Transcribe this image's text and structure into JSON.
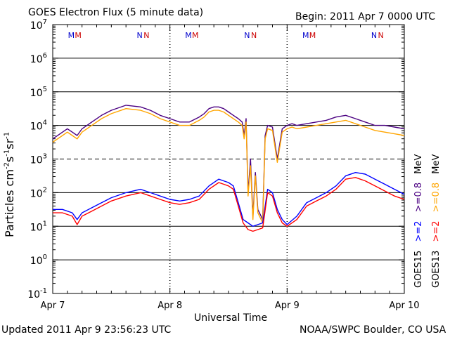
{
  "header": {
    "title": "GOES Electron Flux (5 minute data)",
    "begin": "Begin: 2011 Apr 7 0000 UTC"
  },
  "footer": {
    "updated": "Updated 2011 Apr  9 23:56:23 UTC",
    "credit": "NOAA/SWPC Boulder, CO USA"
  },
  "axes": {
    "xlabel": "Universal Time",
    "ylabel_main": "Particles cm",
    "ylabel_exp1": "-2",
    "ylabel_mid1": "s",
    "ylabel_exp2": "-1",
    "ylabel_mid2": "sr",
    "ylabel_exp3": "-1",
    "xticks": [
      "Apr 7",
      "Apr 8",
      "Apr 9",
      "Apr 10"
    ],
    "yticks": [
      {
        "base": "10",
        "exp": "7"
      },
      {
        "base": "10",
        "exp": "6"
      },
      {
        "base": "10",
        "exp": "5"
      },
      {
        "base": "10",
        "exp": "4"
      },
      {
        "base": "10",
        "exp": "3"
      },
      {
        "base": "10",
        "exp": "2"
      },
      {
        "base": "10",
        "exp": "1"
      },
      {
        "base": "10",
        "exp": "0"
      },
      {
        "base": "10",
        "exp": "-1"
      }
    ]
  },
  "legend": {
    "goes15": "GOES15",
    "goes13": "GOES13",
    "g15_low": ">=2",
    "g15_high": ">=0.8",
    "g13_low": ">=2",
    "g13_high": ">=0.8",
    "unit": "MeV"
  },
  "markers": {
    "labels": [
      "M",
      "M",
      "N",
      "N",
      "M",
      "M",
      "N",
      "N",
      "M",
      "M",
      "N",
      "N"
    ],
    "colors": [
      "#0000cc",
      "#cc0000",
      "#0000cc",
      "#cc0000",
      "#0000cc",
      "#cc0000",
      "#0000cc",
      "#cc0000",
      "#0000cc",
      "#cc0000",
      "#0000cc",
      "#cc0000"
    ]
  },
  "colors": {
    "goes15_high": "#4b0082",
    "goes13_high": "#ffa500",
    "goes15_low": "#0000ff",
    "goes13_low": "#ff0000"
  },
  "chart_data": {
    "type": "line",
    "title": "GOES Electron Flux (5 minute data)",
    "xlabel": "Universal Time",
    "ylabel": "Particles cm^-2 s^-1 sr^-1",
    "x_unit": "hours since 2011 Apr 7 0000 UTC",
    "xlim": [
      0,
      72
    ],
    "ylim_log10": [
      -1,
      7
    ],
    "y_scale": "log",
    "threshold_line_log10": 3,
    "series": [
      {
        "name": "GOES15 >=0.8 MeV",
        "color": "#4b0082",
        "x": [
          0,
          2,
          3,
          4,
          5,
          6,
          8,
          10,
          12,
          15,
          18,
          20,
          22,
          24,
          26,
          28,
          30,
          31,
          32,
          33,
          34,
          35,
          36,
          37,
          38,
          38.8,
          39.2,
          39.6,
          40,
          40.5,
          41,
          41.5,
          42,
          43,
          43.5,
          44,
          45,
          46,
          47,
          48,
          49,
          50,
          52,
          54,
          56,
          58,
          60,
          62,
          64,
          66,
          68,
          70,
          72
        ],
        "y": [
          3.6,
          3.8,
          3.9,
          3.8,
          3.7,
          3.9,
          4.1,
          4.3,
          4.45,
          4.6,
          4.55,
          4.45,
          4.3,
          4.2,
          4.1,
          4.1,
          4.25,
          4.35,
          4.5,
          4.55,
          4.55,
          4.5,
          4.4,
          4.3,
          4.2,
          4.1,
          3.7,
          4.2,
          2.0,
          3.0,
          1.3,
          2.6,
          1.5,
          1.2,
          3.7,
          4.0,
          3.95,
          3.0,
          3.9,
          4.0,
          4.05,
          4.0,
          4.05,
          4.1,
          4.15,
          4.25,
          4.3,
          4.2,
          4.1,
          4.0,
          4.0,
          3.95,
          3.9
        ]
      },
      {
        "name": "GOES13 >=0.8 MeV",
        "color": "#ffa500",
        "x": [
          0,
          2,
          3,
          4,
          5,
          6,
          8,
          10,
          12,
          15,
          18,
          20,
          22,
          24,
          26,
          28,
          30,
          31,
          32,
          33,
          34,
          35,
          36,
          37,
          38,
          38.8,
          39.2,
          39.6,
          40,
          40.5,
          41,
          41.5,
          42,
          43,
          43.5,
          44,
          45,
          46,
          47,
          48,
          49,
          50,
          52,
          54,
          56,
          58,
          60,
          62,
          64,
          66,
          68,
          70,
          72
        ],
        "y": [
          3.5,
          3.7,
          3.8,
          3.7,
          3.6,
          3.8,
          4.0,
          4.2,
          4.35,
          4.5,
          4.45,
          4.35,
          4.2,
          4.1,
          4.0,
          4.0,
          4.15,
          4.25,
          4.4,
          4.45,
          4.45,
          4.4,
          4.3,
          4.2,
          4.1,
          4.0,
          3.6,
          4.1,
          1.9,
          2.8,
          1.2,
          2.5,
          1.4,
          1.1,
          3.6,
          3.9,
          3.85,
          2.9,
          3.8,
          3.9,
          3.95,
          3.9,
          3.95,
          4.0,
          4.05,
          4.1,
          4.15,
          4.05,
          3.95,
          3.85,
          3.8,
          3.75,
          3.7
        ]
      },
      {
        "name": "GOES15 >=2 MeV",
        "color": "#0000ff",
        "x": [
          0,
          2,
          4,
          5,
          6,
          8,
          10,
          12,
          15,
          18,
          20,
          22,
          24,
          26,
          28,
          30,
          32,
          34,
          35,
          36,
          37,
          38,
          39,
          40,
          41,
          42,
          43,
          44,
          45,
          46,
          47,
          48,
          50,
          52,
          54,
          56,
          58,
          60,
          62,
          64,
          66,
          68,
          70,
          72
        ],
        "y": [
          1.5,
          1.5,
          1.4,
          1.2,
          1.4,
          1.55,
          1.7,
          1.85,
          2.0,
          2.1,
          2.0,
          1.9,
          1.8,
          1.75,
          1.8,
          1.9,
          2.2,
          2.4,
          2.35,
          2.3,
          2.2,
          1.7,
          1.2,
          1.1,
          1.0,
          1.05,
          1.1,
          2.1,
          2.0,
          1.5,
          1.2,
          1.05,
          1.3,
          1.7,
          1.85,
          2.0,
          2.2,
          2.5,
          2.6,
          2.55,
          2.4,
          2.25,
          2.1,
          1.95
        ]
      },
      {
        "name": "GOES13 >=2 MeV",
        "color": "#ff0000",
        "x": [
          0,
          2,
          4,
          5,
          6,
          8,
          10,
          12,
          15,
          18,
          20,
          22,
          24,
          26,
          28,
          30,
          32,
          34,
          35,
          36,
          37,
          38,
          39,
          40,
          41,
          42,
          43,
          44,
          45,
          46,
          47,
          48,
          50,
          52,
          54,
          56,
          58,
          60,
          62,
          64,
          66,
          68,
          70,
          72
        ],
        "y": [
          1.4,
          1.4,
          1.3,
          1.05,
          1.3,
          1.45,
          1.6,
          1.75,
          1.9,
          2.0,
          1.9,
          1.8,
          1.7,
          1.65,
          1.7,
          1.8,
          2.1,
          2.3,
          2.25,
          2.2,
          2.1,
          1.6,
          1.1,
          0.9,
          0.85,
          0.9,
          0.95,
          2.0,
          1.9,
          1.4,
          1.1,
          1.0,
          1.2,
          1.6,
          1.75,
          1.9,
          2.1,
          2.4,
          2.45,
          2.35,
          2.2,
          2.05,
          1.9,
          1.8
        ]
      }
    ]
  }
}
